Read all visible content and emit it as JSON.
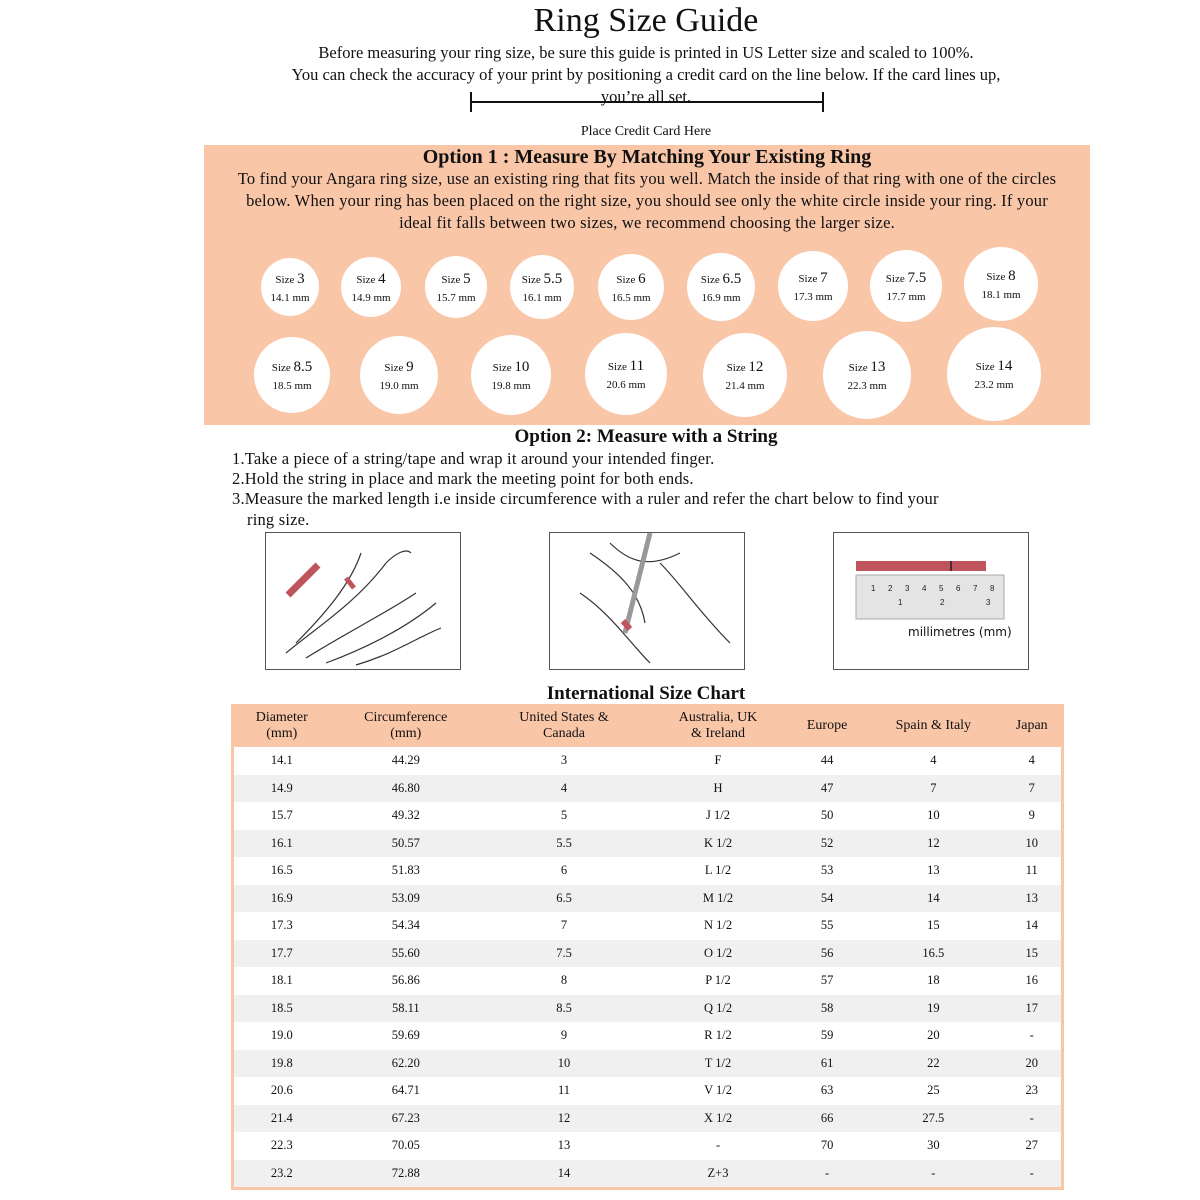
{
  "title": "Ring Size Guide",
  "intro": {
    "line1": "Before measuring your ring size, be sure this guide is printed in US Letter size and scaled to 100%.",
    "line2": "You can check the accuracy of your print by positioning a credit card on the line below. If the card lines up,",
    "line3": "you’re all set.",
    "card_label": "Place Credit Card Here"
  },
  "option1": {
    "title": "Option 1 : Measure By Matching Your Existing Ring",
    "text": "To find your Angara ring size, use an existing ring that fits you well. Match the inside of that ring with one of the circles below. When your ring has been placed on the right size, you should see only the white circle inside your ring. If your ideal fit falls between two sizes, we recommend choosing the larger size.",
    "size_word": "Size",
    "circles": [
      {
        "size": "3",
        "mm": "14.1 mm"
      },
      {
        "size": "4",
        "mm": "14.9 mm"
      },
      {
        "size": "5",
        "mm": "15.7 mm"
      },
      {
        "size": "5.5",
        "mm": "16.1 mm"
      },
      {
        "size": "6",
        "mm": "16.5 mm"
      },
      {
        "size": "6.5",
        "mm": "16.9 mm"
      },
      {
        "size": "7",
        "mm": "17.3 mm"
      },
      {
        "size": "7.5",
        "mm": "17.7 mm"
      },
      {
        "size": "8",
        "mm": "18.1 mm"
      },
      {
        "size": "8.5",
        "mm": "18.5 mm"
      },
      {
        "size": "9",
        "mm": "19.0 mm"
      },
      {
        "size": "10",
        "mm": "19.8 mm"
      },
      {
        "size": "11",
        "mm": "20.6 mm"
      },
      {
        "size": "12",
        "mm": "21.4 mm"
      },
      {
        "size": "13",
        "mm": "22.3 mm"
      },
      {
        "size": "14",
        "mm": "23.2 mm"
      }
    ]
  },
  "option2": {
    "title": "Option 2: Measure with a String",
    "steps": [
      "1.Take a piece of a string/tape and wrap it around your intended finger.",
      "2.Hold the string in place and mark the meeting point for both ends.",
      "3.Measure the marked length i.e inside circumference with a ruler and refer the chart below to find your",
      "ring size."
    ],
    "ruler_label": "millimetres (mm)"
  },
  "chart": {
    "title": "International Size Chart",
    "headers": [
      [
        "Diameter",
        "(mm)"
      ],
      [
        "Circumference",
        "(mm)"
      ],
      [
        "United States &",
        "Canada"
      ],
      [
        "Australia, UK",
        "& Ireland"
      ],
      [
        "Europe",
        ""
      ],
      [
        "Spain & Italy",
        ""
      ],
      [
        "Japan",
        ""
      ]
    ],
    "rows": [
      [
        "14.1",
        "44.29",
        "3",
        "F",
        "44",
        "4",
        "4"
      ],
      [
        "14.9",
        "46.80",
        "4",
        "H",
        "47",
        "7",
        "7"
      ],
      [
        "15.7",
        "49.32",
        "5",
        "J 1/2",
        "50",
        "10",
        "9"
      ],
      [
        "16.1",
        "50.57",
        "5.5",
        "K 1/2",
        "52",
        "12",
        "10"
      ],
      [
        "16.5",
        "51.83",
        "6",
        "L 1/2",
        "53",
        "13",
        "11"
      ],
      [
        "16.9",
        "53.09",
        "6.5",
        "M 1/2",
        "54",
        "14",
        "13"
      ],
      [
        "17.3",
        "54.34",
        "7",
        "N 1/2",
        "55",
        "15",
        "14"
      ],
      [
        "17.7",
        "55.60",
        "7.5",
        "O 1/2",
        "56",
        "16.5",
        "15"
      ],
      [
        "18.1",
        "56.86",
        "8",
        "P 1/2",
        "57",
        "18",
        "16"
      ],
      [
        "18.5",
        "58.11",
        "8.5",
        "Q 1/2",
        "58",
        "19",
        "17"
      ],
      [
        "19.0",
        "59.69",
        "9",
        "R 1/2",
        "59",
        "20",
        "-"
      ],
      [
        "19.8",
        "62.20",
        "10",
        "T 1/2",
        "61",
        "22",
        "20"
      ],
      [
        "20.6",
        "64.71",
        "11",
        "V 1/2",
        "63",
        "25",
        "23"
      ],
      [
        "21.4",
        "67.23",
        "12",
        "X 1/2",
        "66",
        "27.5",
        "-"
      ],
      [
        "22.3",
        "70.05",
        "13",
        "-",
        "70",
        "30",
        "27"
      ],
      [
        "23.2",
        "72.88",
        "14",
        "Z+3",
        "-",
        "-",
        "-"
      ]
    ]
  },
  "colors": {
    "peach": "#f9c6a8",
    "tape_red": "#c0545c",
    "stripe": "#f0f0f0"
  }
}
